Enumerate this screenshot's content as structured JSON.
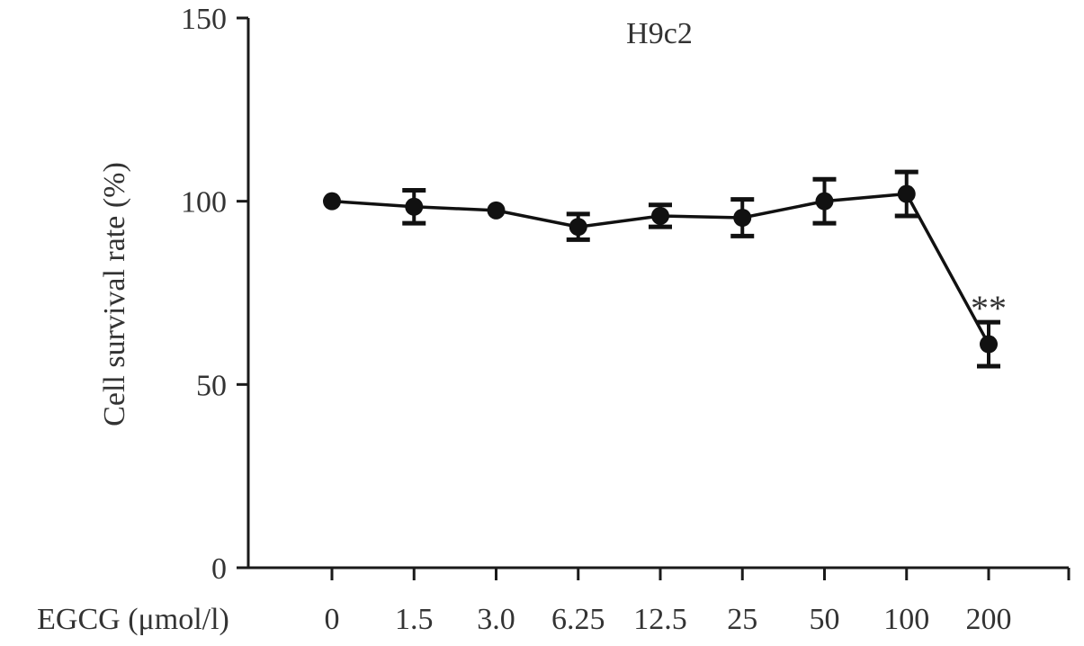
{
  "chart_data": {
    "type": "line",
    "title": "H9c2",
    "xlabel": "EGCG (μmol/l)",
    "ylabel": "Cell survival rate (%)",
    "categories": [
      "0",
      "1.5",
      "3.0",
      "6.25",
      "12.5",
      "25",
      "50",
      "100",
      "200"
    ],
    "y_ticks": [
      "0",
      "50",
      "100",
      "150"
    ],
    "ylim": [
      0,
      150
    ],
    "grid": false,
    "series": [
      {
        "values": [
          100,
          98.5,
          97.5,
          93,
          96,
          95.5,
          100,
          102,
          61
        ],
        "error": [
          0,
          4.5,
          0,
          3.5,
          3,
          5,
          6,
          6,
          6
        ]
      }
    ],
    "annotations": [
      {
        "category": "200",
        "text": "**"
      }
    ]
  }
}
